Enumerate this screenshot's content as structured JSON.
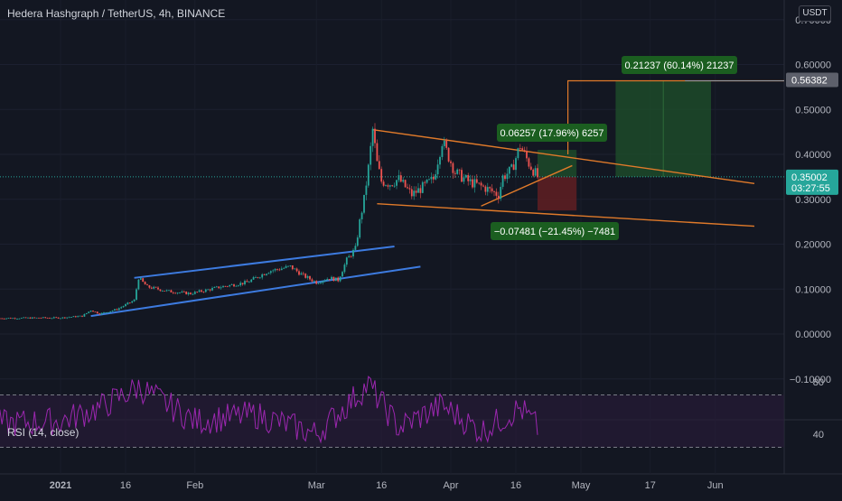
{
  "header": {
    "title": "Hedera Hashgraph / TetherUS, 4h, BINANCE",
    "currency": "USDT"
  },
  "rsi": {
    "label": "RSI (14, close)",
    "ticks": [
      "80",
      "40"
    ],
    "upper": 70,
    "lower": 30,
    "color": "#9c27b0"
  },
  "price_labels": {
    "target": "0.56382",
    "current": "0.35002",
    "countdown": "03:27:55"
  },
  "annotations": {
    "big_target": "0.21237 (60.14%) 21237",
    "small_target": "0.06257 (17.96%) 6257",
    "stop": "−0.07481 (−21.45%) −7481"
  },
  "colors": {
    "background": "#131722",
    "candle_up": "#26a69a",
    "candle_down": "#ef5350",
    "channel": "#2962ff",
    "wedge": "#e07a2a",
    "target_zone": "#1e4d2b",
    "stop_zone": "#5c1e22",
    "label_green": "#1b5e20",
    "current_price": "#26a69a"
  },
  "chart_data": {
    "type": "candlestick",
    "title": "Hedera Hashgraph / TetherUS, 4h, BINANCE",
    "y_axis_ticks": [
      "0.70000",
      "0.60000",
      "0.50000",
      "0.40000",
      "0.30000",
      "0.20000",
      "0.10000",
      "0.00000",
      "−0.10000"
    ],
    "x_axis_ticks": [
      "2021",
      "16",
      "Feb",
      "Mar",
      "16",
      "Apr",
      "16",
      "May",
      "17",
      "Jun"
    ],
    "ylim": [
      -0.18,
      0.73
    ],
    "current_price": 0.35002,
    "target_price": 0.56382,
    "price_path": [
      [
        "2020-12-18",
        0.035
      ],
      [
        "2020-12-28",
        0.036
      ],
      [
        "2021-01-01",
        0.036
      ],
      [
        "2021-01-06",
        0.04
      ],
      [
        "2021-01-08",
        0.053
      ],
      [
        "2021-01-10",
        0.045
      ],
      [
        "2021-01-14",
        0.055
      ],
      [
        "2021-01-18",
        0.075
      ],
      [
        "2021-01-19",
        0.125
      ],
      [
        "2021-01-21",
        0.105
      ],
      [
        "2021-01-26",
        0.095
      ],
      [
        "2021-01-31",
        0.09
      ],
      [
        "2021-02-07",
        0.105
      ],
      [
        "2021-02-13",
        0.115
      ],
      [
        "2021-02-18",
        0.14
      ],
      [
        "2021-02-23",
        0.15
      ],
      [
        "2021-02-26",
        0.13
      ],
      [
        "2021-03-01",
        0.115
      ],
      [
        "2021-03-04",
        0.125
      ],
      [
        "2021-03-06",
        0.12
      ],
      [
        "2021-03-08",
        0.165
      ],
      [
        "2021-03-10",
        0.19
      ],
      [
        "2021-03-11",
        0.25
      ],
      [
        "2021-03-12",
        0.3
      ],
      [
        "2021-03-13",
        0.37
      ],
      [
        "2021-03-14",
        0.455
      ],
      [
        "2021-03-15",
        0.38
      ],
      [
        "2021-03-16",
        0.34
      ],
      [
        "2021-03-18",
        0.335
      ],
      [
        "2021-03-20",
        0.345
      ],
      [
        "2021-03-23",
        0.31
      ],
      [
        "2021-03-26",
        0.33
      ],
      [
        "2021-03-28",
        0.345
      ],
      [
        "2021-03-30",
        0.43
      ],
      [
        "2021-04-02",
        0.36
      ],
      [
        "2021-04-05",
        0.34
      ],
      [
        "2021-04-09",
        0.325
      ],
      [
        "2021-04-12",
        0.31
      ],
      [
        "2021-04-13",
        0.35
      ],
      [
        "2021-04-15",
        0.365
      ],
      [
        "2021-04-17",
        0.42
      ],
      [
        "2021-04-19",
        0.38
      ],
      [
        "2021-04-21",
        0.35
      ]
    ],
    "drawings": {
      "channel_upper": [
        [
          "2021-01-18",
          0.125
        ],
        [
          "2021-03-19",
          0.195
        ]
      ],
      "channel_lower": [
        [
          "2021-01-08",
          0.04
        ],
        [
          "2021-03-25",
          0.15
        ]
      ],
      "wedge_upper": [
        [
          "2021-03-14",
          0.455
        ],
        [
          "2021-06-10",
          0.335
        ]
      ],
      "wedge_lower": [
        [
          "2021-03-15",
          0.29
        ],
        [
          "2021-06-10",
          0.24
        ]
      ],
      "triangle_support": [
        [
          "2021-04-08",
          0.285
        ],
        [
          "2021-04-29",
          0.375
        ]
      ],
      "long_position": {
        "start": "2021-04-21",
        "end": "2021-04-30",
        "entry": 0.35,
        "target": 0.41,
        "stop": 0.275
      },
      "target_projection": {
        "start": "2021-05-09",
        "end": "2021-05-31",
        "entry": 0.35,
        "target": 0.564
      }
    },
    "rsi_path": [
      [
        "2020-12-18",
        48
      ],
      [
        "2021-01-01",
        50
      ],
      [
        "2021-01-10",
        60
      ],
      [
        "2021-01-19",
        76
      ],
      [
        "2021-02-01",
        50
      ],
      [
        "2021-02-15",
        55
      ],
      [
        "2021-03-01",
        40
      ],
      [
        "2021-03-13",
        78
      ],
      [
        "2021-03-20",
        45
      ],
      [
        "2021-03-30",
        62
      ],
      [
        "2021-04-08",
        42
      ],
      [
        "2021-04-17",
        60
      ],
      [
        "2021-04-21",
        45
      ]
    ]
  }
}
